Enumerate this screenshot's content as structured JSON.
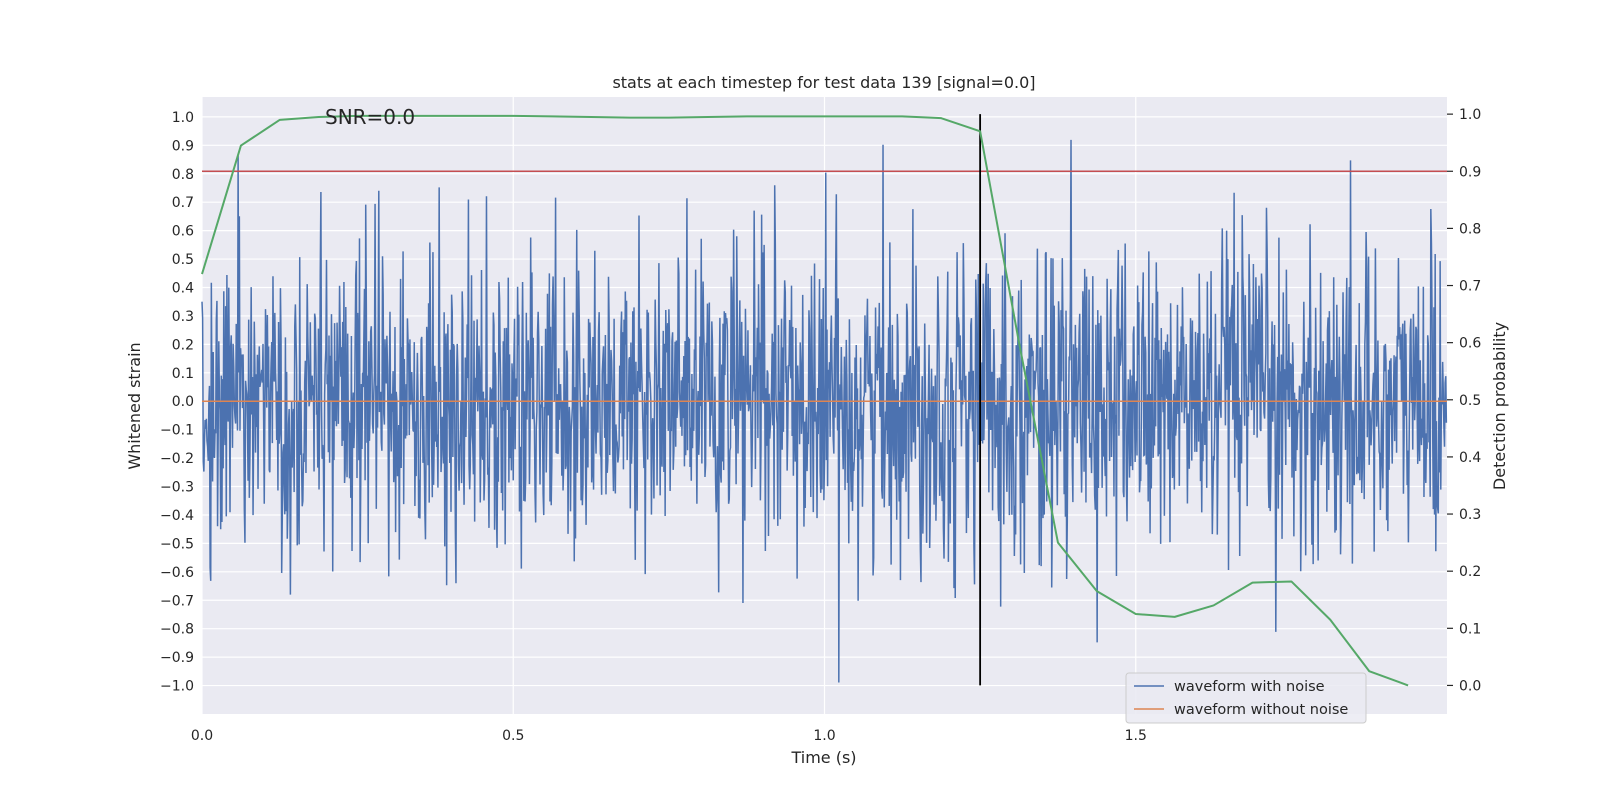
{
  "chart_data": {
    "type": "line",
    "title": "stats at each timestep for test data 139 [signal=0.0]",
    "annotation": "SNR=0.0",
    "xlabel": "Time (s)",
    "ylabel_left": "Whitened strain",
    "ylabel_right": "Detection probability",
    "xlim": [
      0.0,
      2.0
    ],
    "ylim_left": [
      -1.1,
      1.07
    ],
    "ylim_right": [
      -0.05,
      1.03
    ],
    "x_ticks": [
      0.0,
      0.5,
      1.0,
      1.5
    ],
    "x_tick_labels": [
      "0.0",
      "0.5",
      "1.0",
      "1.5"
    ],
    "y_left_ticks": [
      1.0,
      0.9,
      0.8,
      0.7,
      0.6,
      0.5,
      0.4,
      0.3,
      0.2,
      0.1,
      0.0,
      -0.1,
      -0.2,
      -0.3,
      -0.4,
      -0.5,
      -0.6,
      -0.7,
      -0.8,
      -0.9,
      -1.0
    ],
    "y_left_tick_labels": [
      "1.0",
      "0.9",
      "0.8",
      "0.7",
      "0.6",
      "0.5",
      "0.4",
      "0.3",
      "0.2",
      "0.1",
      "0.0",
      "−0.1",
      "−0.2",
      "−0.3",
      "−0.4",
      "−0.5",
      "−0.6",
      "−0.7",
      "−0.8",
      "−0.9",
      "−1.0"
    ],
    "y_right_ticks": [
      1.0,
      0.9,
      0.8,
      0.7,
      0.6,
      0.5,
      0.4,
      0.3,
      0.2,
      0.1,
      0.0
    ],
    "y_right_tick_labels": [
      "1.0",
      "0.9",
      "0.8",
      "0.7",
      "0.6",
      "0.5",
      "0.4",
      "0.3",
      "0.2",
      "0.1",
      "0.0"
    ],
    "grid": true,
    "legend_placement": "lower-right",
    "series": [
      {
        "name": "waveform with noise",
        "axis": "left",
        "style": "noise",
        "color": "#4c72b0",
        "sample_count": 2000,
        "range": [
          -1.0,
          0.97
        ]
      },
      {
        "name": "waveform without noise",
        "axis": "left",
        "color": "#dd8452",
        "x": [
          0.0,
          2.0
        ],
        "y": [
          0.0,
          0.0
        ]
      },
      {
        "axis": "right",
        "color": "#55a868",
        "x": [
          0.0,
          0.0625,
          0.125,
          0.1875,
          0.25,
          0.3125,
          0.375,
          0.4375,
          0.5,
          0.5625,
          0.625,
          0.6875,
          0.75,
          0.8125,
          0.875,
          0.9375,
          1.0,
          1.0625,
          1.125,
          1.1875,
          1.25,
          1.3125,
          1.375,
          1.4375,
          1.5,
          1.5625,
          1.625,
          1.6875,
          1.75,
          1.8125,
          1.875,
          1.9375
        ],
        "y": [
          0.72,
          0.945,
          0.99,
          0.995,
          0.997,
          0.997,
          0.997,
          0.997,
          0.997,
          0.996,
          0.995,
          0.994,
          0.994,
          0.995,
          0.996,
          0.996,
          0.996,
          0.996,
          0.996,
          0.993,
          0.97,
          0.6,
          0.25,
          0.165,
          0.125,
          0.12,
          0.14,
          0.18,
          0.182,
          0.115,
          0.025,
          0.0
        ]
      }
    ],
    "threshold_line": {
      "axis": "right",
      "value": 0.9,
      "color": "#c44e52"
    },
    "vertical_marker": {
      "x": 1.25,
      "y_range": [
        0.0,
        1.0
      ],
      "axis": "right",
      "color": "#000000"
    }
  }
}
